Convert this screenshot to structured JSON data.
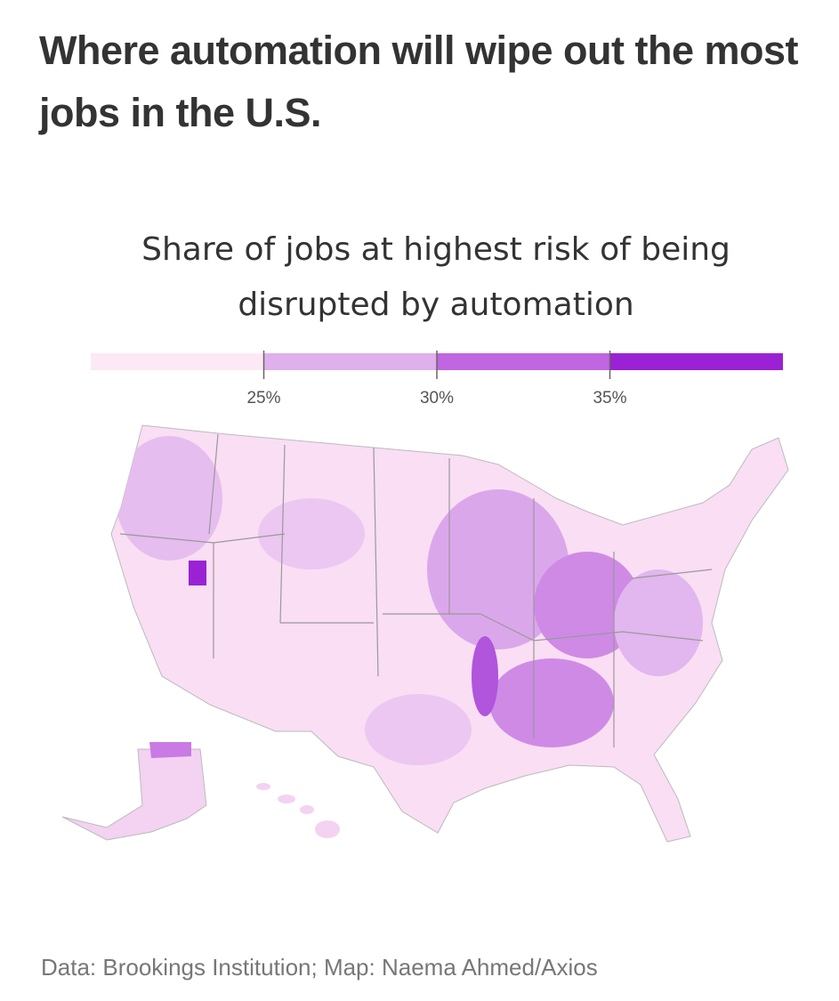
{
  "title": "Where automation will wipe out the most jobs in the U.S.",
  "legend": {
    "title": "Share of jobs at highest risk of being disrupted by automation",
    "lim": [
      20,
      40
    ],
    "ticks": [
      {
        "value": 25,
        "label": "25%"
      },
      {
        "value": 30,
        "label": "30%"
      },
      {
        "value": 35,
        "label": "35%"
      }
    ],
    "colors": [
      "#fce9f6",
      "#dfb0ec",
      "#bf66e0",
      "#9a22d4"
    ]
  },
  "source": "Data: Brookings Institution; Map: Naema Ahmed/Axios"
}
